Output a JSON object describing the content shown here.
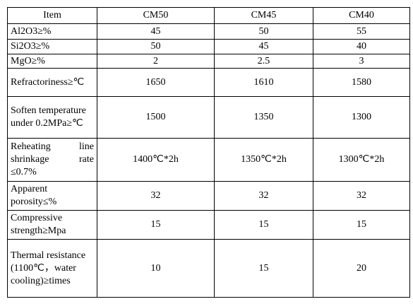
{
  "table": {
    "header": [
      "Item",
      "CM50",
      "CM45",
      "CM40"
    ],
    "rows": [
      [
        "Al2O3≥%",
        45,
        50,
        55
      ],
      [
        "Si2O3≥%",
        50,
        45,
        40
      ],
      [
        "MgO≥%",
        2,
        2.5,
        3
      ],
      [
        "Refractoriness≥℃",
        1650,
        1610,
        1580
      ],
      [
        "Soften temperature under 0.2MPa≥℃",
        1500,
        1350,
        1300
      ],
      [
        "Reheating line shrinkage rate ≤0.7%",
        "1400℃*2h",
        "1350℃*2h",
        "1300℃*2h"
      ],
      [
        "Apparent porosity≤%",
        32,
        32,
        32
      ],
      [
        "Compressive strength≥Mpa",
        15,
        15,
        15
      ],
      [
        "Thermal resistance (1100℃，water cooling)≥times",
        10,
        15,
        20
      ]
    ]
  }
}
